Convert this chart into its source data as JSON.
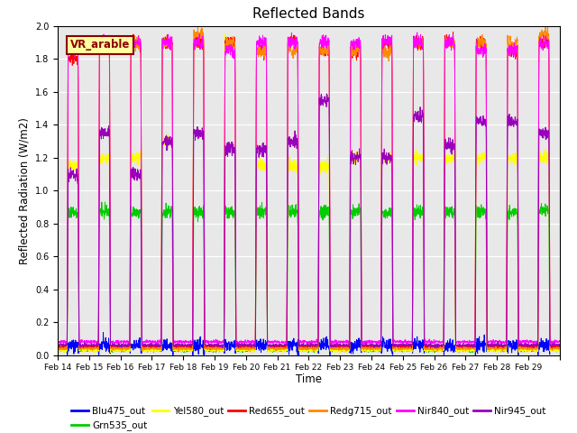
{
  "title": "Reflected Bands",
  "xlabel": "Time",
  "ylabel": "Reflected Radiation (W/m2)",
  "annotation": "VR_arable",
  "ylim": [
    0,
    2.0
  ],
  "series": [
    {
      "label": "Blu475_out",
      "color": "#0000ff",
      "base": 0.05,
      "peaks": [
        0.06,
        0.06,
        0.06,
        0.06,
        0.06,
        0.06,
        0.06,
        0.06,
        0.06,
        0.06,
        0.06,
        0.06,
        0.06,
        0.06,
        0.06,
        0.06
      ]
    },
    {
      "label": "Grn535_out",
      "color": "#00cc00",
      "base": 0.03,
      "peaks": [
        0.87,
        0.87,
        0.87,
        0.87,
        0.87,
        0.87,
        0.87,
        0.87,
        0.87,
        0.87,
        0.87,
        0.87,
        0.87,
        0.87,
        0.87,
        0.88
      ]
    },
    {
      "label": "Yel580_out",
      "color": "#ffff00",
      "base": 0.03,
      "peaks": [
        1.15,
        1.2,
        1.2,
        1.3,
        1.9,
        1.9,
        1.15,
        1.15,
        1.15,
        1.2,
        1.2,
        1.2,
        1.2,
        1.2,
        1.2,
        1.2
      ]
    },
    {
      "label": "Red655_out",
      "color": "#ff0000",
      "base": 0.05,
      "peaks": [
        1.8,
        1.9,
        1.9,
        1.9,
        1.9,
        1.9,
        1.85,
        1.9,
        1.85,
        1.85,
        1.9,
        1.9,
        1.9,
        1.9,
        1.85,
        1.9
      ]
    },
    {
      "label": "Redg715_out",
      "color": "#ff8800",
      "base": 0.04,
      "peaks": [
        1.9,
        1.9,
        1.9,
        1.9,
        1.95,
        1.9,
        1.85,
        1.85,
        1.85,
        1.85,
        1.85,
        1.9,
        1.9,
        1.9,
        1.9,
        1.95
      ]
    },
    {
      "label": "Nir840_out",
      "color": "#ff00ff",
      "base": 0.08,
      "peaks": [
        1.85,
        1.9,
        1.9,
        1.9,
        1.9,
        1.85,
        1.9,
        1.9,
        1.9,
        1.9,
        1.9,
        1.9,
        1.9,
        1.85,
        1.85,
        1.9
      ]
    },
    {
      "label": "Nir945_out",
      "color": "#9900bb",
      "base": 0.06,
      "peaks": [
        1.1,
        1.35,
        1.1,
        1.3,
        1.35,
        1.25,
        1.25,
        1.3,
        1.55,
        1.2,
        1.2,
        1.45,
        1.27,
        1.42,
        1.42,
        1.35
      ]
    }
  ],
  "x_tick_labels": [
    "Feb 14",
    "Feb 15",
    "Feb 16",
    "Feb 17",
    "Feb 18",
    "Feb 19",
    "Feb 20",
    "Feb 21",
    "Feb 22",
    "Feb 23",
    "Feb 24",
    "Feb 25",
    "Feb 26",
    "Feb 27",
    "Feb 28",
    "Feb 29"
  ],
  "background_color": "#e8e8e8",
  "n_days": 16,
  "points_per_day": 144,
  "day_start": 0.3,
  "day_end": 0.68
}
